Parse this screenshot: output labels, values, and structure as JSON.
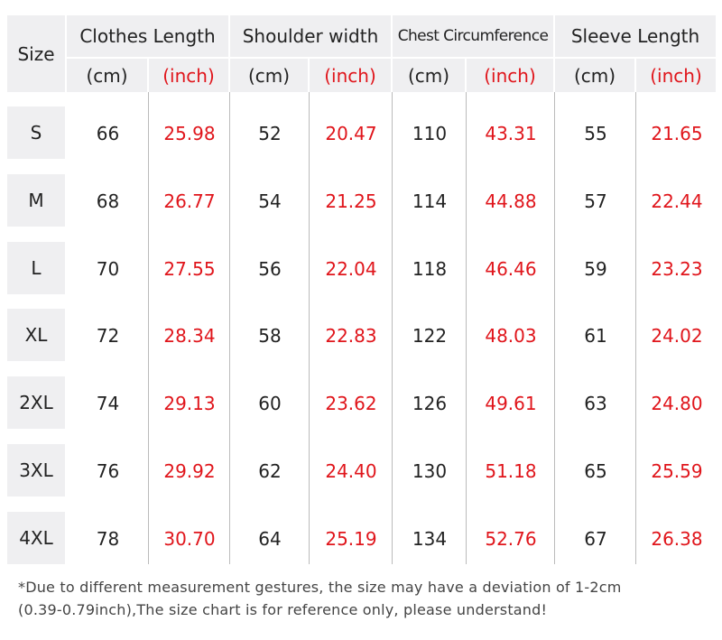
{
  "header": {
    "size": "Size",
    "groups": [
      "Clothes Length",
      "Shoulder width",
      "Chest Circumference",
      "Sleeve Length"
    ],
    "units": [
      "(cm)",
      "(inch)",
      "(cm)",
      "(inch)",
      "(cm)",
      "(inch)",
      "(cm)",
      "(inch)"
    ]
  },
  "rows": [
    [
      "S",
      "66",
      "25.98",
      "52",
      "20.47",
      "110",
      "43.31",
      "55",
      "21.65"
    ],
    [
      "M",
      "68",
      "26.77",
      "54",
      "21.25",
      "114",
      "44.88",
      "57",
      "22.44"
    ],
    [
      "L",
      "70",
      "27.55",
      "56",
      "22.04",
      "118",
      "46.46",
      "59",
      "23.23"
    ],
    [
      "XL",
      "72",
      "28.34",
      "58",
      "22.83",
      "122",
      "48.03",
      "61",
      "24.02"
    ],
    [
      "2XL",
      "74",
      "29.13",
      "60",
      "23.62",
      "126",
      "49.61",
      "63",
      "24.80"
    ],
    [
      "3XL",
      "76",
      "29.92",
      "62",
      "24.40",
      "130",
      "51.18",
      "65",
      "25.59"
    ],
    [
      "4XL",
      "78",
      "30.70",
      "64",
      "25.19",
      "134",
      "52.76",
      "67",
      "26.38"
    ]
  ],
  "note": [
    "*Due to different measurement gestures, the size may have a deviation of 1-2cm",
    "(0.39-0.79inch),The size chart is for reference only, please understand!"
  ]
}
